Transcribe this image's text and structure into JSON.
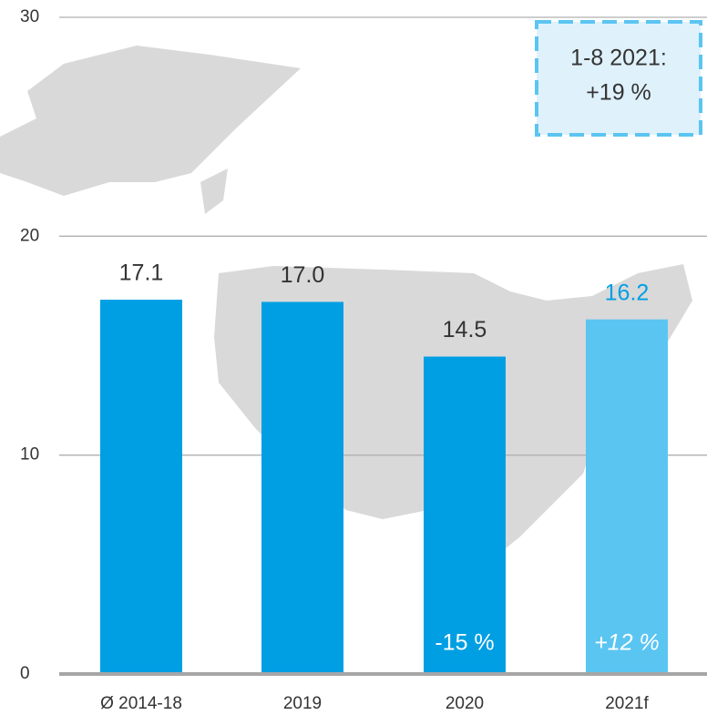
{
  "chart_data": {
    "type": "bar",
    "categories": [
      "Ø 2014-18",
      "2019",
      "2020",
      "2021f"
    ],
    "values": [
      17.1,
      17.0,
      14.5,
      16.2
    ],
    "value_labels": [
      "17.1",
      "17.0",
      "14.5",
      "16.2"
    ],
    "colors": [
      "#009fe3",
      "#009fe3",
      "#009fe3",
      "#5bc5f2"
    ],
    "value_label_colors": [
      "#333333",
      "#333333",
      "#333333",
      "#009fe3"
    ],
    "bar_annotations": [
      null,
      null,
      "-15 %",
      "+12 %"
    ],
    "callout": [
      "1-8 2021:",
      "+19 %"
    ],
    "ylim": [
      0,
      30
    ],
    "yticks": [
      0,
      10,
      20,
      30
    ],
    "grid": true
  }
}
